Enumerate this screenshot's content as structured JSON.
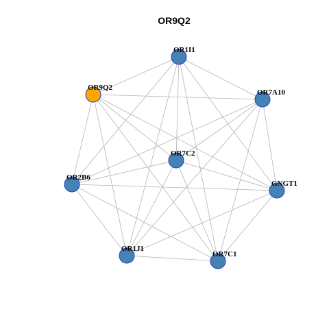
{
  "title": "OR9Q2",
  "nodes": [
    {
      "label": "OR1I1",
      "color": "#4682b4"
    },
    {
      "label": "OR9Q2",
      "color": "#ffa500"
    },
    {
      "label": "OR7A10",
      "color": "#4682b4"
    },
    {
      "label": "OR7C2",
      "color": "#4682b4"
    },
    {
      "label": "OR2B6",
      "color": "#4682b4"
    },
    {
      "label": "GNGT1",
      "color": "#4682b4"
    },
    {
      "label": "OR1J1",
      "color": "#4682b4"
    },
    {
      "label": "OR7C1",
      "color": "#4682b4"
    }
  ],
  "edges": [
    [
      0,
      1
    ],
    [
      0,
      2
    ],
    [
      0,
      3
    ],
    [
      0,
      4
    ],
    [
      0,
      5
    ],
    [
      0,
      6
    ],
    [
      0,
      7
    ],
    [
      1,
      2
    ],
    [
      1,
      3
    ],
    [
      1,
      4
    ],
    [
      1,
      5
    ],
    [
      1,
      6
    ],
    [
      1,
      7
    ],
    [
      2,
      3
    ],
    [
      2,
      4
    ],
    [
      2,
      5
    ],
    [
      2,
      6
    ],
    [
      2,
      7
    ],
    [
      3,
      4
    ],
    [
      3,
      5
    ],
    [
      3,
      6
    ],
    [
      3,
      7
    ],
    [
      4,
      5
    ],
    [
      4,
      6
    ],
    [
      4,
      7
    ],
    [
      5,
      6
    ],
    [
      5,
      7
    ],
    [
      6,
      7
    ]
  ]
}
